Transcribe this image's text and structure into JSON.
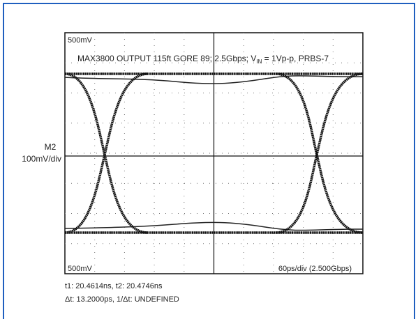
{
  "screen": {
    "top_scale": "500mV",
    "title_start": "MAX3800 OUTPUT 115ft GORE 89; 2.5Gbps; V",
    "title_sub": "IN",
    "title_end": " = 1Vp-p, PRBS-7",
    "bottom_scale": "500mV",
    "timebase": "60ps/div (2.500Gbps)"
  },
  "channel": {
    "name": "M2",
    "scale": "100mV/div"
  },
  "measurements": [
    "t1: 20.4614ns, t2: 20.4746ns",
    "Δt: 13.2000ps, 1/Δt: UNDEFINED"
  ]
}
